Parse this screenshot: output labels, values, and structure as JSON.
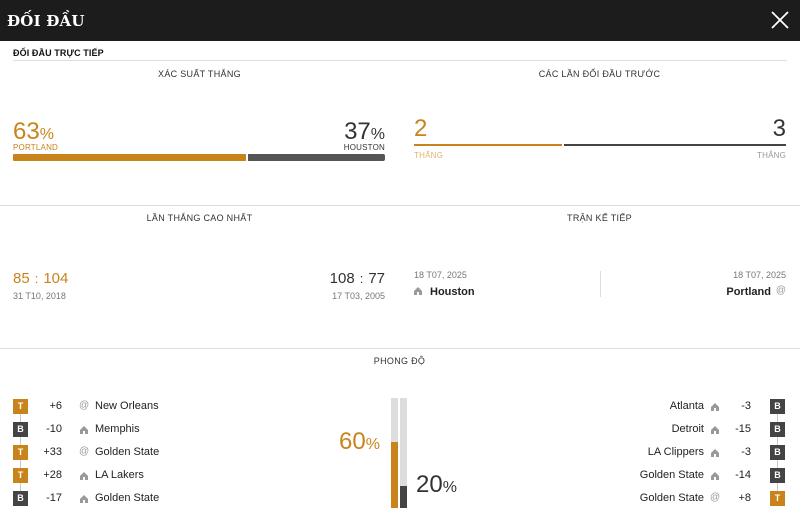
{
  "header": {
    "title": "ĐỐI ĐẦU",
    "close_icon": "close-icon"
  },
  "subheader": "ĐỐI ĐẦU TRỰC TIẾP",
  "win_prob": {
    "label": "XÁC SUẤT THẮNG",
    "left": {
      "value": "63",
      "unit": "%",
      "team": "PORTLAND",
      "fraction": 0.63
    },
    "right": {
      "value": "37",
      "unit": "%",
      "team": "HOUSTON",
      "fraction": 0.37
    }
  },
  "previous": {
    "label": "CÁC LẦN ĐỐI ĐẦU TRƯỚC",
    "left": {
      "value": "2",
      "caption": "THẮNG",
      "fraction": 0.4
    },
    "right": {
      "value": "3",
      "caption": "THẮNG",
      "fraction": 0.6
    }
  },
  "biggest_win": {
    "label": "LẦN THẮNG CAO NHẤT",
    "left": {
      "score_a": "85",
      "sep": ":",
      "score_b": "104",
      "date": "31 T10, 2018"
    },
    "right": {
      "score_a": "108",
      "sep": ":",
      "score_b": "77",
      "date": "17 T03, 2005"
    }
  },
  "next_match": {
    "label": "TRẬN KẾ TIẾP",
    "left": {
      "date": "18 T07, 2025",
      "team": "Houston",
      "icon": "home-icon"
    },
    "right": {
      "date": "18 T07, 2025",
      "team": "Portland",
      "icon": "@"
    }
  },
  "form": {
    "label": "PHONG ĐỘ",
    "left_pct": {
      "value": "60",
      "unit": "%",
      "fraction": 0.6
    },
    "right_pct": {
      "value": "20",
      "unit": "%",
      "fraction": 0.2
    },
    "left_games": [
      {
        "result": "T",
        "diff": "+6",
        "loc": "@",
        "opponent": "New Orleans"
      },
      {
        "result": "B",
        "diff": "-10",
        "loc": "home",
        "opponent": "Memphis"
      },
      {
        "result": "T",
        "diff": "+33",
        "loc": "@",
        "opponent": "Golden State"
      },
      {
        "result": "T",
        "diff": "+28",
        "loc": "home",
        "opponent": "LA Lakers"
      },
      {
        "result": "B",
        "diff": "-17",
        "loc": "home",
        "opponent": "Golden State"
      }
    ],
    "right_games": [
      {
        "result": "B",
        "diff": "-3",
        "loc": "home",
        "opponent": "Atlanta"
      },
      {
        "result": "B",
        "diff": "-15",
        "loc": "home",
        "opponent": "Detroit"
      },
      {
        "result": "B",
        "diff": "-3",
        "loc": "home",
        "opponent": "LA Clippers"
      },
      {
        "result": "B",
        "diff": "-14",
        "loc": "home",
        "opponent": "Golden State"
      },
      {
        "result": "T",
        "diff": "+8",
        "loc": "@",
        "opponent": "Golden State"
      }
    ]
  },
  "colors": {
    "accent": "#c8841b",
    "dark": "#444444",
    "header_bg": "#1c1c1c"
  }
}
